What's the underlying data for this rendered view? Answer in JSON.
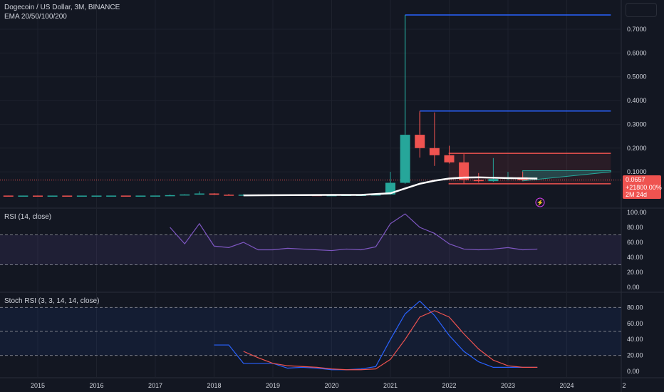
{
  "header": {
    "title": "Dogecoin / US Dollar, 3M, BINANCE",
    "indicator": "EMA 20/50/100/200"
  },
  "price_label": {
    "price": "0.0657",
    "change": "+21800.00%",
    "countdown": "2M 24d"
  },
  "rsi_pane": {
    "title": "RSI (14, close)"
  },
  "stoch_pane": {
    "title": "Stoch RSI (3, 3, 14, 14, close)"
  },
  "x_axis": {
    "labels": [
      "2015",
      "2016",
      "2017",
      "2018",
      "2019",
      "2020",
      "2021",
      "2022",
      "2023",
      "2024",
      "2"
    ]
  },
  "colors": {
    "up": "#26a69a",
    "down": "#ef5350",
    "blue": "#2962ff",
    "purple": "#7e57c2",
    "bg": "#131722",
    "grid": "#1e222d",
    "axis_text": "#d1d4dc"
  },
  "chart_data": [
    {
      "type": "candlestick",
      "title": "Dogecoin / US Dollar, 3M, BINANCE",
      "y_ticks": [
        0.1,
        0.2,
        0.3,
        0.4,
        0.5,
        0.6,
        0.7
      ],
      "y_tick_labels": [
        "0.1000",
        "0.2000",
        "0.3000",
        "0.4000",
        "0.5000",
        "0.6000",
        "0.7000"
      ],
      "ylim": [
        -0.02,
        0.79
      ],
      "x_ticks": [
        2015,
        2016,
        2017,
        2018,
        2019,
        2020,
        2021,
        2022,
        2023,
        2024
      ],
      "candles": [
        {
          "t": 2014.5,
          "o": 0.0003,
          "h": 0.0004,
          "l": 0.0002,
          "c": 0.0002
        },
        {
          "t": 2014.75,
          "o": 0.0002,
          "h": 0.0003,
          "l": 0.0001,
          "c": 0.0002
        },
        {
          "t": 2015.0,
          "o": 0.0002,
          "h": 0.0003,
          "l": 0.0001,
          "c": 0.0001
        },
        {
          "t": 2015.25,
          "o": 0.0001,
          "h": 0.0002,
          "l": 0.0001,
          "c": 0.0002
        },
        {
          "t": 2015.5,
          "o": 0.0002,
          "h": 0.0002,
          "l": 0.0001,
          "c": 0.0001
        },
        {
          "t": 2015.75,
          "o": 0.0001,
          "h": 0.0002,
          "l": 0.0001,
          "c": 0.0002
        },
        {
          "t": 2016.0,
          "o": 0.0002,
          "h": 0.0003,
          "l": 0.0002,
          "c": 0.0002
        },
        {
          "t": 2016.25,
          "o": 0.0002,
          "h": 0.0003,
          "l": 0.0002,
          "c": 0.0003
        },
        {
          "t": 2016.5,
          "o": 0.0003,
          "h": 0.0003,
          "l": 0.0002,
          "c": 0.0002
        },
        {
          "t": 2016.75,
          "o": 0.0002,
          "h": 0.0003,
          "l": 0.0002,
          "c": 0.0002
        },
        {
          "t": 2017.0,
          "o": 0.0002,
          "h": 0.0005,
          "l": 0.0002,
          "c": 0.0004
        },
        {
          "t": 2017.25,
          "o": 0.0004,
          "h": 0.0045,
          "l": 0.0004,
          "c": 0.002
        },
        {
          "t": 2017.5,
          "o": 0.002,
          "h": 0.006,
          "l": 0.0015,
          "c": 0.005
        },
        {
          "t": 2017.75,
          "o": 0.005,
          "h": 0.018,
          "l": 0.004,
          "c": 0.009
        },
        {
          "t": 2018.0,
          "o": 0.009,
          "h": 0.01,
          "l": 0.003,
          "c": 0.004
        },
        {
          "t": 2018.25,
          "o": 0.004,
          "h": 0.007,
          "l": 0.0025,
          "c": 0.003
        },
        {
          "t": 2018.5,
          "o": 0.003,
          "h": 0.006,
          "l": 0.002,
          "c": 0.004
        },
        {
          "t": 2018.75,
          "o": 0.004,
          "h": 0.005,
          "l": 0.002,
          "c": 0.002
        },
        {
          "t": 2019.0,
          "o": 0.002,
          "h": 0.004,
          "l": 0.0015,
          "c": 0.003
        },
        {
          "t": 2019.25,
          "o": 0.003,
          "h": 0.005,
          "l": 0.002,
          "c": 0.003
        },
        {
          "t": 2019.5,
          "o": 0.003,
          "h": 0.004,
          "l": 0.002,
          "c": 0.0025
        },
        {
          "t": 2019.75,
          "o": 0.0025,
          "h": 0.003,
          "l": 0.0018,
          "c": 0.002
        },
        {
          "t": 2020.0,
          "o": 0.002,
          "h": 0.003,
          "l": 0.001,
          "c": 0.002
        },
        {
          "t": 2020.25,
          "o": 0.002,
          "h": 0.004,
          "l": 0.002,
          "c": 0.003
        },
        {
          "t": 2020.5,
          "o": 0.003,
          "h": 0.004,
          "l": 0.002,
          "c": 0.003
        },
        {
          "t": 2020.75,
          "o": 0.003,
          "h": 0.006,
          "l": 0.0025,
          "c": 0.005
        },
        {
          "t": 2021.0,
          "o": 0.005,
          "h": 0.1,
          "l": 0.005,
          "c": 0.054
        },
        {
          "t": 2021.25,
          "o": 0.054,
          "h": 0.76,
          "l": 0.05,
          "c": 0.256
        },
        {
          "t": 2021.5,
          "o": 0.256,
          "h": 0.35,
          "l": 0.16,
          "c": 0.2
        },
        {
          "t": 2021.75,
          "o": 0.2,
          "h": 0.35,
          "l": 0.125,
          "c": 0.17
        },
        {
          "t": 2022.0,
          "o": 0.17,
          "h": 0.21,
          "l": 0.135,
          "c": 0.14
        },
        {
          "t": 2022.25,
          "o": 0.14,
          "h": 0.175,
          "l": 0.05,
          "c": 0.066
        },
        {
          "t": 2022.5,
          "o": 0.066,
          "h": 0.095,
          "l": 0.055,
          "c": 0.061
        },
        {
          "t": 2022.75,
          "o": 0.061,
          "h": 0.158,
          "l": 0.058,
          "c": 0.07
        },
        {
          "t": 2023.0,
          "o": 0.07,
          "h": 0.1,
          "l": 0.065,
          "c": 0.077
        },
        {
          "t": 2023.25,
          "o": 0.077,
          "h": 0.1,
          "l": 0.063,
          "c": 0.0657
        }
      ],
      "ema": {
        "x": [
          2018.5,
          2019,
          2020,
          2020.5,
          2021,
          2021.25,
          2021.5,
          2021.75,
          2022,
          2022.25,
          2022.5,
          2023,
          2023.5
        ],
        "y": [
          0.001,
          0.002,
          0.003,
          0.003,
          0.01,
          0.03,
          0.05,
          0.063,
          0.072,
          0.076,
          0.077,
          0.074,
          0.072
        ]
      },
      "levels": [
        {
          "price": 0.76,
          "x0": 2021.25,
          "x1": 2024.75,
          "color": "#2962ff"
        },
        {
          "price": 0.356,
          "x0": 2021.5,
          "x1": 2024.75,
          "color": "#2962ff"
        },
        {
          "price": 0.178,
          "x0": 2021.99,
          "x1": 2024.75,
          "color": "#ef5350"
        },
        {
          "price": 0.05,
          "x0": 2021.99,
          "x1": 2024.75,
          "color": "#ef5350"
        }
      ],
      "last_price": 0.0657
    },
    {
      "type": "line",
      "title": "RSI (14, close)",
      "y_ticks": [
        0,
        20,
        40,
        60,
        80,
        100
      ],
      "y_tick_labels": [
        "0.00",
        "20.00",
        "40.00",
        "60.00",
        "80.00",
        "100.00"
      ],
      "ylim": [
        -5,
        101
      ],
      "bands": [
        30,
        70
      ],
      "series": [
        {
          "x": [
            2017.25,
            2017.5,
            2017.75,
            2018,
            2018.25,
            2018.5,
            2018.75,
            2019,
            2019.25,
            2019.5,
            2019.75,
            2020,
            2020.25,
            2020.5,
            2020.75,
            2021,
            2021.25,
            2021.5,
            2021.75,
            2022,
            2022.25,
            2022.5,
            2022.75,
            2023,
            2023.25,
            2023.5
          ],
          "y": [
            80,
            58,
            85,
            55,
            53,
            60,
            50,
            50,
            52,
            51,
            50,
            49,
            51,
            50,
            54,
            85,
            98,
            80,
            72,
            58,
            51,
            50,
            51,
            53,
            50,
            51
          ],
          "color": "#7e57c2"
        }
      ]
    },
    {
      "type": "line",
      "title": "Stoch RSI (3, 3, 14, 14, close)",
      "y_ticks": [
        0,
        20,
        40,
        60,
        80
      ],
      "y_tick_labels": [
        "0.00",
        "20.00",
        "40.00",
        "60.00",
        "80.00"
      ],
      "ylim": [
        -7,
        95
      ],
      "bands": [
        20,
        50,
        80
      ],
      "series": [
        {
          "x": [
            2018,
            2018.25,
            2018.5,
            2018.75,
            2019,
            2019.25,
            2019.5,
            2019.75,
            2020,
            2020.25,
            2020.5,
            2020.75,
            2021,
            2021.25,
            2021.5,
            2021.75,
            2022,
            2022.25,
            2022.5,
            2022.75,
            2023,
            2023.25,
            2023.5
          ],
          "y": [
            33,
            33,
            10,
            10,
            10,
            4,
            5,
            4,
            2,
            2,
            3,
            6,
            40,
            72,
            88,
            70,
            45,
            25,
            12,
            5,
            5,
            5,
            5
          ],
          "color": "#2962ff"
        },
        {
          "x": [
            2018.5,
            2018.75,
            2019,
            2019.25,
            2019.5,
            2019.75,
            2020,
            2020.25,
            2020.5,
            2020.75,
            2021,
            2021.25,
            2021.5,
            2021.75,
            2022,
            2022.25,
            2022.5,
            2022.75,
            2023,
            2023.25,
            2023.5
          ],
          "y": [
            25,
            17,
            10,
            7,
            6,
            5,
            3,
            2,
            2,
            3,
            15,
            40,
            68,
            76,
            68,
            47,
            28,
            14,
            7,
            5,
            5
          ],
          "color": "#ef5350"
        }
      ]
    }
  ]
}
